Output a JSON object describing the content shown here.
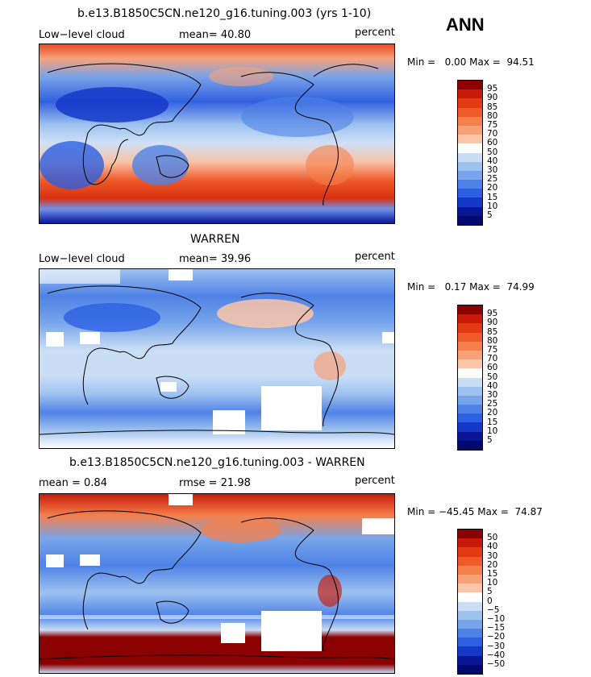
{
  "season": "ANN",
  "panels": [
    {
      "title": "b.e13.B1850C5CN.ne120_g16.tuning.003 (yrs 1-10)",
      "left_label": "Low−level cloud",
      "center_label": "mean=  40.80",
      "units": "percent",
      "minmax": "Min =   0.00 Max =  94.51",
      "colorbar_labels": [
        "95",
        "90",
        "85",
        "80",
        "75",
        "70",
        "60",
        "50",
        "40",
        "30",
        "25",
        "20",
        "15",
        "10",
        "5"
      ],
      "colorbar_colors": [
        "#8b0000",
        "#c71a09",
        "#e23a12",
        "#ef5a2a",
        "#f5804c",
        "#f8a178",
        "#fbc6a8",
        "#ffffff",
        "#c9ddf5",
        "#9ec2ef",
        "#77a4ea",
        "#4f82e6",
        "#2c5fe2",
        "#1438c8",
        "#0a1596",
        "#000a6e"
      ]
    },
    {
      "title": "WARREN",
      "left_label": "Low−level cloud",
      "center_label": "mean=  39.96",
      "units": "percent",
      "minmax": "Min =   0.17 Max =  74.99",
      "colorbar_labels": [
        "95",
        "90",
        "85",
        "80",
        "75",
        "70",
        "60",
        "50",
        "40",
        "30",
        "25",
        "20",
        "15",
        "10",
        "5"
      ],
      "colorbar_colors": [
        "#8b0000",
        "#c71a09",
        "#e23a12",
        "#ef5a2a",
        "#f5804c",
        "#f8a178",
        "#fbc6a8",
        "#ffffff",
        "#c9ddf5",
        "#9ec2ef",
        "#77a4ea",
        "#4f82e6",
        "#2c5fe2",
        "#1438c8",
        "#0a1596",
        "#000a6e"
      ]
    },
    {
      "title": "b.e13.B1850C5CN.ne120_g16.tuning.003 - WARREN",
      "left_label": "mean =   0.84",
      "center_label": "rmse =  21.98",
      "units": "percent",
      "minmax": "Min = −45.45 Max =  74.87",
      "colorbar_labels": [
        "50",
        "40",
        "30",
        "20",
        "15",
        "10",
        "5",
        "0",
        "−5",
        "−10",
        "−15",
        "−20",
        "−30",
        "−40",
        "−50"
      ],
      "colorbar_colors": [
        "#8b0000",
        "#c71a09",
        "#e23a12",
        "#ef5a2a",
        "#f5804c",
        "#f8a178",
        "#fbc6a8",
        "#ffffff",
        "#c9ddf5",
        "#9ec2ef",
        "#77a4ea",
        "#4f82e6",
        "#2c5fe2",
        "#1438c8",
        "#0a1596",
        "#000a6e"
      ]
    }
  ]
}
